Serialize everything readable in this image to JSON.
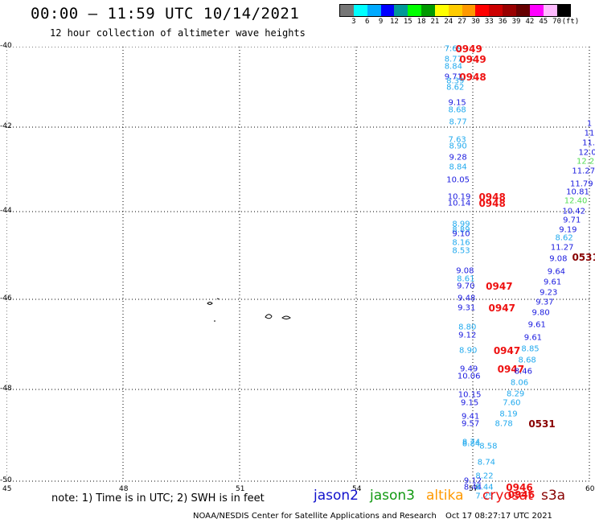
{
  "header": {
    "title": "00:00 – 11:59 UTC 10/14/2021",
    "subtitle": "12 hour collection of altimeter wave heights"
  },
  "legend": {
    "colors": [
      "#777777",
      "#00ffff",
      "#00aaff",
      "#0000ff",
      "#009999",
      "#00ff00",
      "#009900",
      "#ffff00",
      "#ffcc00",
      "#ff9900",
      "#ff0000",
      "#cc0000",
      "#990000",
      "#660000",
      "#ff00ff",
      "#ffbbff",
      "#000000"
    ],
    "labels": [
      "3",
      "6",
      "9",
      "12",
      "15",
      "18",
      "21",
      "24",
      "27",
      "30",
      "33",
      "36",
      "39",
      "42",
      "45",
      "70",
      "(ft)"
    ]
  },
  "axes": {
    "y_labels": [
      "-40",
      "-42",
      "-44",
      "-46",
      "-48",
      "-50"
    ],
    "x_labels": [
      "45",
      "48",
      "51",
      "54",
      "57",
      "60"
    ]
  },
  "observations": [
    {
      "t": "7.69",
      "c": "#22aaee",
      "lon": 56.5,
      "lat": -40.05
    },
    {
      "t": "0949",
      "c": "#ee1111",
      "lon": 56.9,
      "lat": -40.05,
      "time": true
    },
    {
      "t": "8.77",
      "c": "#22aaee",
      "lon": 56.5,
      "lat": -40.32
    },
    {
      "t": "0949",
      "c": "#ee1111",
      "lon": 57.0,
      "lat": -40.32,
      "time": true
    },
    {
      "t": "8.84",
      "c": "#22aaee",
      "lon": 56.5,
      "lat": -40.5
    },
    {
      "t": "9.71",
      "c": "#1a1adf",
      "lon": 56.5,
      "lat": -40.75
    },
    {
      "t": "0948",
      "c": "#ee1111",
      "lon": 57.0,
      "lat": -40.75,
      "time": true
    },
    {
      "t": "8.39",
      "c": "#22aaee",
      "lon": 56.55,
      "lat": -40.85
    },
    {
      "t": "8.62",
      "c": "#22aaee",
      "lon": 56.55,
      "lat": -41.02
    },
    {
      "t": "9.15",
      "c": "#1a1adf",
      "lon": 56.6,
      "lat": -41.4
    },
    {
      "t": "8.68",
      "c": "#22aaee",
      "lon": 56.6,
      "lat": -41.58
    },
    {
      "t": "8.77",
      "c": "#22aaee",
      "lon": 56.62,
      "lat": -41.87
    },
    {
      "t": "7.63",
      "c": "#22aaee",
      "lon": 56.6,
      "lat": -42.3
    },
    {
      "t": "8.90",
      "c": "#22aaee",
      "lon": 56.62,
      "lat": -42.45
    },
    {
      "t": "9.28",
      "c": "#1a1adf",
      "lon": 56.62,
      "lat": -42.72
    },
    {
      "t": "8.84",
      "c": "#22aaee",
      "lon": 56.62,
      "lat": -42.95
    },
    {
      "t": "10.05",
      "c": "#1a1adf",
      "lon": 56.62,
      "lat": -43.25
    },
    {
      "t": "10.19",
      "c": "#1a1adf",
      "lon": 56.65,
      "lat": -43.65
    },
    {
      "t": "0948",
      "c": "#ee1111",
      "lon": 57.5,
      "lat": -43.65,
      "time": true
    },
    {
      "t": "10.14",
      "c": "#1a1adf",
      "lon": 56.65,
      "lat": -43.8
    },
    {
      "t": "0948",
      "c": "#ee1111",
      "lon": 57.5,
      "lat": -43.8,
      "time": true
    },
    {
      "t": "8.99",
      "c": "#22aaee",
      "lon": 56.7,
      "lat": -44.3
    },
    {
      "t": "8.89",
      "c": "#22aaee",
      "lon": 56.7,
      "lat": -44.42
    },
    {
      "t": "9.10",
      "c": "#1a1adf",
      "lon": 56.7,
      "lat": -44.52
    },
    {
      "t": "8.16",
      "c": "#22aaee",
      "lon": 56.7,
      "lat": -44.72
    },
    {
      "t": "8.53",
      "c": "#22aaee",
      "lon": 56.7,
      "lat": -44.9
    },
    {
      "t": "9.08",
      "c": "#1a1adf",
      "lon": 56.8,
      "lat": -45.35
    },
    {
      "t": "8.61",
      "c": "#22aaee",
      "lon": 56.82,
      "lat": -45.55
    },
    {
      "t": "9.70",
      "c": "#1a1adf",
      "lon": 56.82,
      "lat": -45.7
    },
    {
      "t": "0947",
      "c": "#ee1111",
      "lon": 57.68,
      "lat": -45.7,
      "time": true
    },
    {
      "t": "9.48",
      "c": "#1a1adf",
      "lon": 56.84,
      "lat": -45.98
    },
    {
      "t": "9.31",
      "c": "#1a1adf",
      "lon": 56.84,
      "lat": -46.2
    },
    {
      "t": "0947",
      "c": "#ee1111",
      "lon": 57.75,
      "lat": -46.2,
      "time": true
    },
    {
      "t": "8.80",
      "c": "#22aaee",
      "lon": 56.86,
      "lat": -46.62
    },
    {
      "t": "9.12",
      "c": "#1a1adf",
      "lon": 56.86,
      "lat": -46.8
    },
    {
      "t": "8.90",
      "c": "#22aaee",
      "lon": 56.88,
      "lat": -47.15
    },
    {
      "t": "0947",
      "c": "#ee1111",
      "lon": 57.88,
      "lat": -47.15,
      "time": true
    },
    {
      "t": "9.49",
      "c": "#1a1adf",
      "lon": 56.9,
      "lat": -47.55
    },
    {
      "t": "0947",
      "c": "#ee1111",
      "lon": 57.98,
      "lat": -47.55,
      "time": true
    },
    {
      "t": "10.06",
      "c": "#1a1adf",
      "lon": 56.9,
      "lat": -47.72
    },
    {
      "t": "10.15",
      "c": "#1a1adf",
      "lon": 56.92,
      "lat": -48.12
    },
    {
      "t": "9.15",
      "c": "#1a1adf",
      "lon": 56.92,
      "lat": -48.3
    },
    {
      "t": "9.41",
      "c": "#1a1adf",
      "lon": 56.94,
      "lat": -48.6
    },
    {
      "t": "9.57",
      "c": "#1a1adf",
      "lon": 56.94,
      "lat": -48.75
    },
    {
      "t": "8.74",
      "c": "#22aaee",
      "lon": 56.96,
      "lat": -49.15
    },
    {
      "t": "8.84",
      "c": "#22aaee",
      "lon": 56.96,
      "lat": -49.2
    },
    {
      "t": "8.58",
      "c": "#22aaee",
      "lon": 57.4,
      "lat": -49.25
    },
    {
      "t": "8.74",
      "c": "#22aaee",
      "lon": 57.35,
      "lat": -49.6
    },
    {
      "t": "8.22",
      "c": "#22aaee",
      "lon": 57.3,
      "lat": -49.9
    },
    {
      "t": "9.12",
      "c": "#1a1adf",
      "lon": 57.0,
      "lat": -50.0
    },
    {
      "t": "8.44",
      "c": "#1a1adf",
      "lon": 57.0,
      "lat": -50.15
    },
    {
      "t": "8.44",
      "c": "#22aaee",
      "lon": 57.3,
      "lat": -50.15
    },
    {
      "t": "0946",
      "c": "#ee1111",
      "lon": 58.2,
      "lat": -50.15,
      "time": true
    },
    {
      "t": "7.25",
      "c": "#22aaee",
      "lon": 57.3,
      "lat": -50.35
    },
    {
      "t": "0946",
      "c": "#ee1111",
      "lon": 58.25,
      "lat": -50.3,
      "time": true
    },
    {
      "t": "8.85",
      "c": "#22aaee",
      "lon": 58.48,
      "lat": -47.1
    },
    {
      "t": "8.68",
      "c": "#22aaee",
      "lon": 58.4,
      "lat": -47.35
    },
    {
      "t": "8.46",
      "c": "#1a1adf",
      "lon": 58.3,
      "lat": -47.6
    },
    {
      "t": "8.06",
      "c": "#22aaee",
      "lon": 58.2,
      "lat": -47.85
    },
    {
      "t": "8.29",
      "c": "#22aaee",
      "lon": 58.1,
      "lat": -48.1
    },
    {
      "t": "7.60",
      "c": "#22aaee",
      "lon": 58.0,
      "lat": -48.3
    },
    {
      "t": "8.19",
      "c": "#22aaee",
      "lon": 57.92,
      "lat": -48.55
    },
    {
      "t": "8.78",
      "c": "#22aaee",
      "lon": 57.8,
      "lat": -48.75
    },
    {
      "t": "0531",
      "c": "#880000",
      "lon": 58.78,
      "lat": -48.75,
      "time": true
    },
    {
      "t": "9.61",
      "c": "#1a1adf",
      "lon": 58.55,
      "lat": -46.85
    },
    {
      "t": "9.61",
      "c": "#1a1adf",
      "lon": 58.65,
      "lat": -46.58
    },
    {
      "t": "9.80",
      "c": "#1a1adf",
      "lon": 58.75,
      "lat": -46.3
    },
    {
      "t": "9.37",
      "c": "#1a1adf",
      "lon": 58.85,
      "lat": -46.08
    },
    {
      "t": "9.23",
      "c": "#1a1adf",
      "lon": 58.95,
      "lat": -45.85
    },
    {
      "t": "9.61",
      "c": "#1a1adf",
      "lon": 59.05,
      "lat": -45.62
    },
    {
      "t": "9.64",
      "c": "#1a1adf",
      "lon": 59.15,
      "lat": -45.38
    },
    {
      "t": "9.08",
      "c": "#1a1adf",
      "lon": 59.2,
      "lat": -45.08
    },
    {
      "t": "0531",
      "c": "#880000",
      "lon": 59.9,
      "lat": -45.05,
      "time": true
    },
    {
      "t": "11.27",
      "c": "#1a1adf",
      "lon": 59.3,
      "lat": -44.82
    },
    {
      "t": "8.62",
      "c": "#22aaee",
      "lon": 59.35,
      "lat": -44.6
    },
    {
      "t": "9.19",
      "c": "#1a1adf",
      "lon": 59.45,
      "lat": -44.42
    },
    {
      "t": "9.71",
      "c": "#1a1adf",
      "lon": 59.55,
      "lat": -44.2
    },
    {
      "t": "10.42",
      "c": "#1a1adf",
      "lon": 59.6,
      "lat": -44.0
    },
    {
      "t": "12.40",
      "c": "#55dd55",
      "lon": 59.65,
      "lat": -43.75
    },
    {
      "t": "10.81",
      "c": "#1a1adf",
      "lon": 59.7,
      "lat": -43.55
    },
    {
      "t": "11.79",
      "c": "#1a1adf",
      "lon": 59.8,
      "lat": -43.35
    },
    {
      "t": "11.27",
      "c": "#1a1adf",
      "lon": 59.85,
      "lat": -43.05
    },
    {
      "t": "12.2",
      "c": "#55dd55",
      "lon": 59.9,
      "lat": -42.82
    },
    {
      "t": "12.0",
      "c": "#1a1adf",
      "lon": 59.95,
      "lat": -42.6
    },
    {
      "t": "11.",
      "c": "#1a1adf",
      "lon": 59.98,
      "lat": -42.38
    },
    {
      "t": "11",
      "c": "#1a1adf",
      "lon": 60.0,
      "lat": -42.15
    },
    {
      "t": "1",
      "c": "#1a1adf",
      "lon": 60.0,
      "lat": -41.92
    }
  ],
  "footer": {
    "note": "note:  1) Time is in UTC;  2) SWH is in feet",
    "satellites": [
      {
        "name": "jason2",
        "color": "#1111cc"
      },
      {
        "name": "jason3",
        "color": "#119911"
      },
      {
        "name": "altika",
        "color": "#ff9900"
      },
      {
        "name": "cryosat",
        "color": "#ee1111"
      },
      {
        "name": "s3a",
        "color": "#880000"
      }
    ],
    "credit": "NOAA/NESDIS Center for Satellite Applications and Research",
    "timestamp": "Oct 17 08:27:17 UTC 2021"
  }
}
